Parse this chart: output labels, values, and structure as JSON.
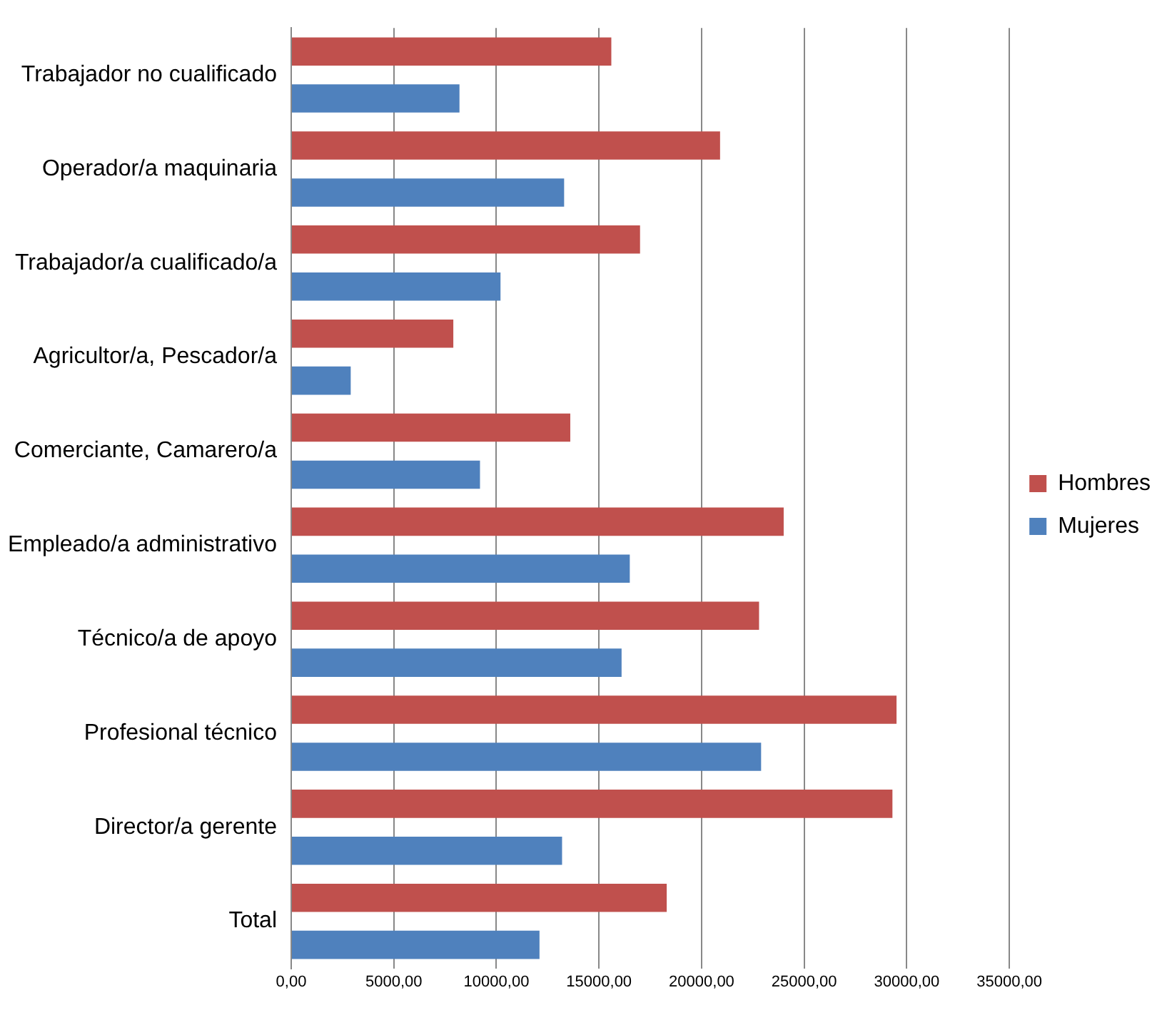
{
  "chart_data": {
    "type": "bar",
    "orientation": "horizontal",
    "categories": [
      "Trabajador no cualificado",
      "Operador/a maquinaria",
      "Trabajador/a cualificado/a",
      "Agricultor/a, Pescador/a",
      "Comerciante, Camarero/a",
      "Empleado/a administrativo",
      "Técnico/a de apoyo",
      "Profesional técnico",
      "Director/a gerente",
      "Total"
    ],
    "series": [
      {
        "name": "Hombres",
        "color": "#c0504d",
        "values": [
          15600,
          20900,
          17000,
          7900,
          13600,
          24000,
          22800,
          29500,
          29300,
          18300
        ]
      },
      {
        "name": "Mujeres",
        "color": "#4f81bd",
        "values": [
          8200,
          13300,
          10200,
          2900,
          9200,
          16500,
          16100,
          22900,
          13200,
          12100
        ]
      }
    ],
    "xlim": [
      0,
      35000
    ],
    "xticks": [
      {
        "value": 0,
        "label": "0,00"
      },
      {
        "value": 5000,
        "label": "5000,00"
      },
      {
        "value": 10000,
        "label": "10000,00"
      },
      {
        "value": 15000,
        "label": "15000,00"
      },
      {
        "value": 20000,
        "label": "20000,00"
      },
      {
        "value": 25000,
        "label": "25000,00"
      },
      {
        "value": 30000,
        "label": "30000,00"
      },
      {
        "value": 35000,
        "label": "35000,00"
      }
    ],
    "grid": "x",
    "legend": "right"
  }
}
